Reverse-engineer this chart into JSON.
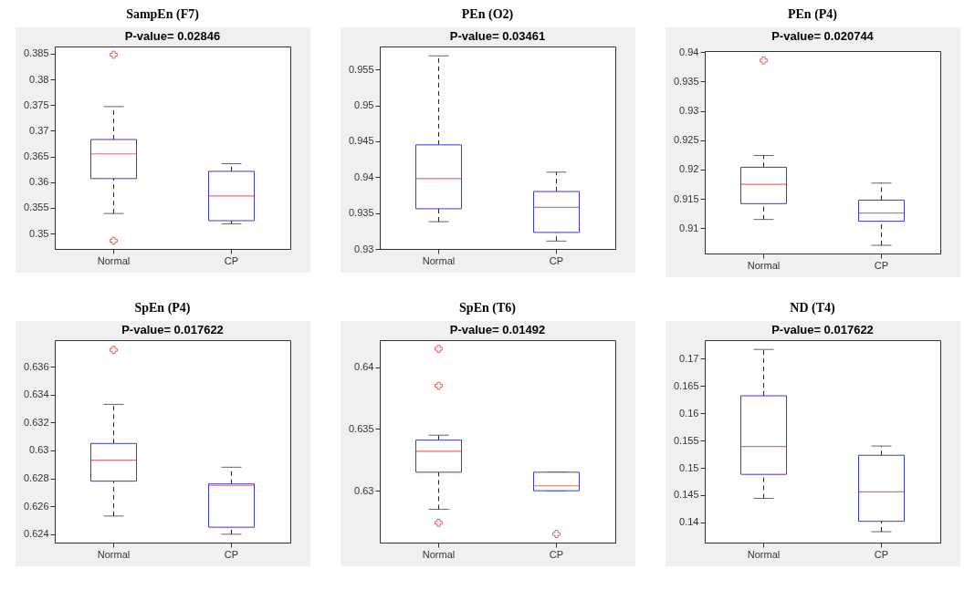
{
  "chart_data": [
    {
      "type": "box",
      "title": "SampEn (F7)",
      "subtitle": "P-value= 0.02846",
      "categories": [
        "Normal",
        "CP"
      ],
      "color": "#3a3ad6",
      "marker": "cross",
      "ylim": [
        0.347,
        0.3864
      ],
      "yticks": [
        0.35,
        0.355,
        0.36,
        0.365,
        0.37,
        0.375,
        0.38,
        0.385
      ],
      "boxes": [
        {
          "low": 0.3539,
          "q1": 0.3607,
          "median": 0.3655,
          "q3": 0.3683,
          "high": 0.3747,
          "outliers": [
            0.3848,
            0.3486
          ]
        },
        {
          "low": 0.3519,
          "q1": 0.3525,
          "median": 0.3573,
          "q3": 0.3621,
          "high": 0.3636
        }
      ]
    },
    {
      "type": "box",
      "title": "PEn (O2)",
      "subtitle": "P-value= 0.03461",
      "categories": [
        "Normal",
        "CP"
      ],
      "color": "#3a3ad6",
      "marker": "cross",
      "ylim": [
        0.93,
        0.9582
      ],
      "yticks": [
        0.93,
        0.935,
        0.94,
        0.945,
        0.95,
        0.955
      ],
      "boxes": [
        {
          "low": 0.9338,
          "q1": 0.9356,
          "median": 0.9398,
          "q3": 0.9445,
          "high": 0.9569
        },
        {
          "low": 0.9311,
          "q1": 0.9323,
          "median": 0.9358,
          "q3": 0.938,
          "high": 0.9407
        }
      ]
    },
    {
      "type": "box",
      "title": "PEn (P4)",
      "subtitle": "P-value= 0.020744",
      "categories": [
        "Normal",
        "CP"
      ],
      "color": "#3a3ad6",
      "marker": "cross",
      "ylim": [
        0.9057,
        0.9402
      ],
      "yticks": [
        0.91,
        0.915,
        0.92,
        0.925,
        0.93,
        0.935,
        0.94
      ],
      "boxes": [
        {
          "low": 0.9115,
          "q1": 0.9142,
          "median": 0.9175,
          "q3": 0.9204,
          "high": 0.9224,
          "outliers": [
            0.9386
          ]
        },
        {
          "low": 0.9071,
          "q1": 0.9112,
          "median": 0.9126,
          "q3": 0.9148,
          "high": 0.9177
        }
      ]
    },
    {
      "type": "box",
      "title": "SpEn (P4)",
      "subtitle": "P-value= 0.017622",
      "categories": [
        "Normal",
        "CP"
      ],
      "color": "#3a3ad6",
      "marker": "cross",
      "ylim": [
        0.6234,
        0.6379
      ],
      "yticks": [
        0.624,
        0.626,
        0.628,
        0.63,
        0.632,
        0.634,
        0.636
      ],
      "boxes": [
        {
          "low": 0.6253,
          "q1": 0.6278,
          "median": 0.6293,
          "q3": 0.6305,
          "high": 0.6333,
          "outliers": [
            0.6372
          ]
        },
        {
          "low": 0.624,
          "q1": 0.6245,
          "median": 0.6275,
          "q3": 0.6276,
          "high": 0.6288
        }
      ]
    },
    {
      "type": "box",
      "title": "SpEn (T6)",
      "subtitle": "P-value= 0.01492",
      "categories": [
        "Normal",
        "CP"
      ],
      "color": "#3a3ad6",
      "marker": "cross",
      "ylim": [
        0.6258,
        0.6422
      ],
      "yticks": [
        0.63,
        0.635,
        0.64
      ],
      "boxes": [
        {
          "low": 0.6285,
          "q1": 0.6315,
          "median": 0.6332,
          "q3": 0.6341,
          "high": 0.6345,
          "outliers": [
            0.6415,
            0.6385,
            0.6274
          ]
        },
        {
          "low": 0.63,
          "q1": 0.63,
          "median": 0.6304,
          "q3": 0.6315,
          "high": 0.6315,
          "outliers": [
            0.6265
          ]
        }
      ]
    },
    {
      "type": "box",
      "title": "ND (T4)",
      "subtitle": "P-value= 0.017622",
      "categories": [
        "Normal",
        "CP"
      ],
      "color": "#3a3ad6",
      "marker": "cross",
      "ylim": [
        0.1363,
        0.1734
      ],
      "yticks": [
        0.14,
        0.145,
        0.15,
        0.155,
        0.16,
        0.165,
        0.17
      ],
      "boxes": [
        {
          "low": 0.1444,
          "q1": 0.1488,
          "median": 0.1539,
          "q3": 0.1632,
          "high": 0.1717
        },
        {
          "low": 0.1383,
          "q1": 0.1402,
          "median": 0.1456,
          "q3": 0.1523,
          "high": 0.154
        }
      ]
    }
  ]
}
